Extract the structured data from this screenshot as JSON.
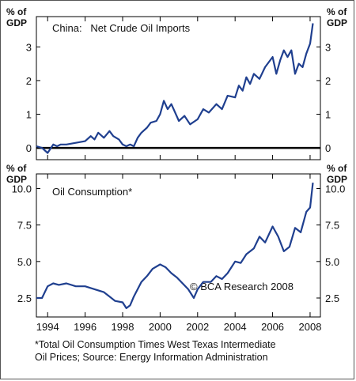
{
  "chart_data": [
    {
      "type": "line",
      "title": "China:   Net Crude Oil Imports",
      "ylabel_left": "% of\nGDP",
      "ylabel_right": "% of\nGDP",
      "ylim": [
        -0.35,
        3.9
      ],
      "yticks": [
        0,
        1,
        2,
        3
      ],
      "zero_line": true,
      "series": [
        {
          "color": "#1f3f8f",
          "x": [
            1993.4,
            1993.7,
            1994.0,
            1994.3,
            1994.5,
            1994.7,
            1995.0,
            1995.5,
            1996.0,
            1996.3,
            1996.5,
            1996.7,
            1997.0,
            1997.3,
            1997.5,
            1997.8,
            1998.0,
            1998.2,
            1998.4,
            1998.6,
            1998.8,
            1999.0,
            1999.3,
            1999.5,
            1999.8,
            2000.0,
            2000.2,
            2000.4,
            2000.6,
            2000.8,
            2001.0,
            2001.3,
            2001.6,
            2002.0,
            2002.3,
            2002.6,
            2003.0,
            2003.3,
            2003.6,
            2004.0,
            2004.2,
            2004.4,
            2004.6,
            2004.8,
            2005.0,
            2005.3,
            2005.6,
            2006.0,
            2006.2,
            2006.4,
            2006.6,
            2006.8,
            2007.0,
            2007.2,
            2007.4,
            2007.6,
            2007.8,
            2008.0,
            2008.15
          ],
          "values": [
            0.05,
            0.0,
            -0.15,
            0.1,
            0.05,
            0.1,
            0.1,
            0.15,
            0.2,
            0.35,
            0.25,
            0.45,
            0.3,
            0.5,
            0.35,
            0.25,
            0.1,
            0.05,
            0.1,
            0.05,
            0.3,
            0.45,
            0.6,
            0.75,
            0.8,
            1.0,
            1.4,
            1.15,
            1.3,
            1.05,
            0.8,
            0.95,
            0.7,
            0.85,
            1.15,
            1.05,
            1.3,
            1.15,
            1.55,
            1.5,
            1.85,
            1.7,
            2.1,
            1.9,
            2.2,
            2.05,
            2.4,
            2.7,
            2.2,
            2.6,
            2.9,
            2.7,
            2.9,
            2.2,
            2.5,
            2.4,
            2.8,
            3.1,
            3.7
          ]
        }
      ]
    },
    {
      "type": "line",
      "title": "Oil Consumption*",
      "ylabel_left": "% of\nGDP",
      "ylabel_right": "% of\nGDP",
      "ylim": [
        1.2,
        11.0
      ],
      "yticks": [
        2.5,
        5.0,
        7.5,
        10.0
      ],
      "ytick_labels": [
        "2.5",
        "5.0",
        "7.5",
        "10.0"
      ],
      "annotation": "© BCA Research 2008",
      "x_tick_labels": [
        "1994",
        "1996",
        "1998",
        "2000",
        "2002",
        "2004",
        "2006",
        "2008"
      ],
      "x_ticks": [
        1994,
        1996,
        1998,
        2000,
        2002,
        2004,
        2006,
        2008
      ],
      "xlim": [
        1993.4,
        2008.55
      ],
      "series": [
        {
          "color": "#1f3f8f",
          "x": [
            1993.4,
            1993.7,
            1994.0,
            1994.3,
            1994.6,
            1995.0,
            1995.5,
            1996.0,
            1996.5,
            1997.0,
            1997.3,
            1997.6,
            1998.0,
            1998.2,
            1998.4,
            1998.6,
            1999.0,
            1999.3,
            1999.6,
            2000.0,
            2000.3,
            2000.6,
            2000.9,
            2001.2,
            2001.5,
            2001.8,
            2002.0,
            2002.3,
            2002.7,
            2003.0,
            2003.3,
            2003.6,
            2004.0,
            2004.3,
            2004.6,
            2005.0,
            2005.3,
            2005.6,
            2006.0,
            2006.3,
            2006.6,
            2006.9,
            2007.2,
            2007.5,
            2007.8,
            2008.0,
            2008.15
          ],
          "values": [
            2.5,
            2.5,
            3.3,
            3.5,
            3.4,
            3.5,
            3.3,
            3.3,
            3.1,
            2.9,
            2.6,
            2.3,
            2.2,
            1.8,
            2.0,
            2.6,
            3.6,
            4.0,
            4.5,
            4.8,
            4.6,
            4.2,
            3.9,
            3.5,
            3.1,
            2.5,
            3.1,
            3.6,
            3.6,
            4.0,
            3.8,
            4.2,
            5.0,
            4.9,
            5.5,
            5.9,
            6.7,
            6.3,
            7.4,
            6.7,
            5.7,
            6.0,
            7.3,
            7.0,
            8.4,
            8.7,
            10.4
          ]
        }
      ]
    }
  ],
  "footnote": {
    "line1": "*Total Oil Consumption Times West Texas Intermediate",
    "line2": "Oil Prices; Source: Energy Information Administration"
  }
}
